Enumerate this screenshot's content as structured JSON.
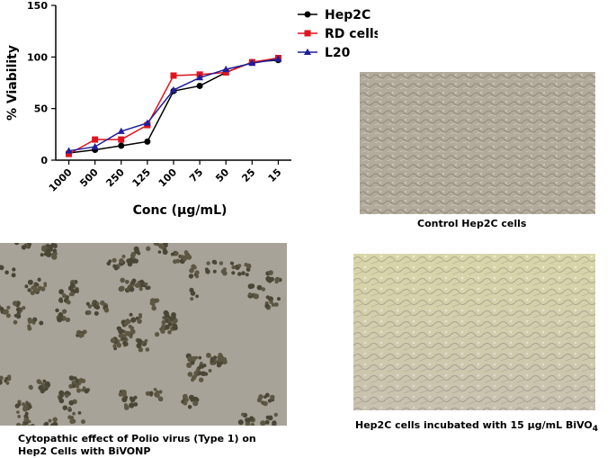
{
  "chart_data": {
    "type": "line",
    "xlabel": "Conc (µg/mL)",
    "ylabel": "% Viability",
    "categories": [
      "1000",
      "500",
      "250",
      "125",
      "100",
      "75",
      "50",
      "25",
      "15"
    ],
    "ylim": [
      0,
      150
    ],
    "yticks": [
      "0",
      "50",
      "100",
      "150"
    ],
    "grid": false,
    "legend_position": "right",
    "series": [
      {
        "name": "Hep2C",
        "marker": "circle",
        "color": "#000000",
        "values": [
          7,
          10,
          14,
          18,
          67,
          72,
          85,
          95,
          97
        ]
      },
      {
        "name": "RD cells",
        "marker": "square",
        "color": "#e0141e",
        "values": [
          6,
          20,
          20,
          34,
          82,
          83,
          85,
          95,
          99
        ]
      },
      {
        "name": "L20",
        "marker": "triangle",
        "color": "#1f1f9a",
        "values": [
          9,
          13,
          28,
          36,
          68,
          80,
          88,
          94,
          98
        ]
      }
    ]
  },
  "captions": {
    "control": "Control Hep2C cells",
    "cytopathic_line1": "Cytopathic effect of Polio virus (Type 1) on",
    "cytopathic_line2": "Hep2 Cells with BiVONP",
    "incubated_main": "Hep2C cells incubated with 15 μg/mL BiVO",
    "incubated_sub": "4"
  },
  "images": {
    "control": "micrograph-dense-monolayer",
    "cytopathic": "micrograph-rounded-clusters",
    "incubated": "micrograph-spindle-monolayer"
  }
}
